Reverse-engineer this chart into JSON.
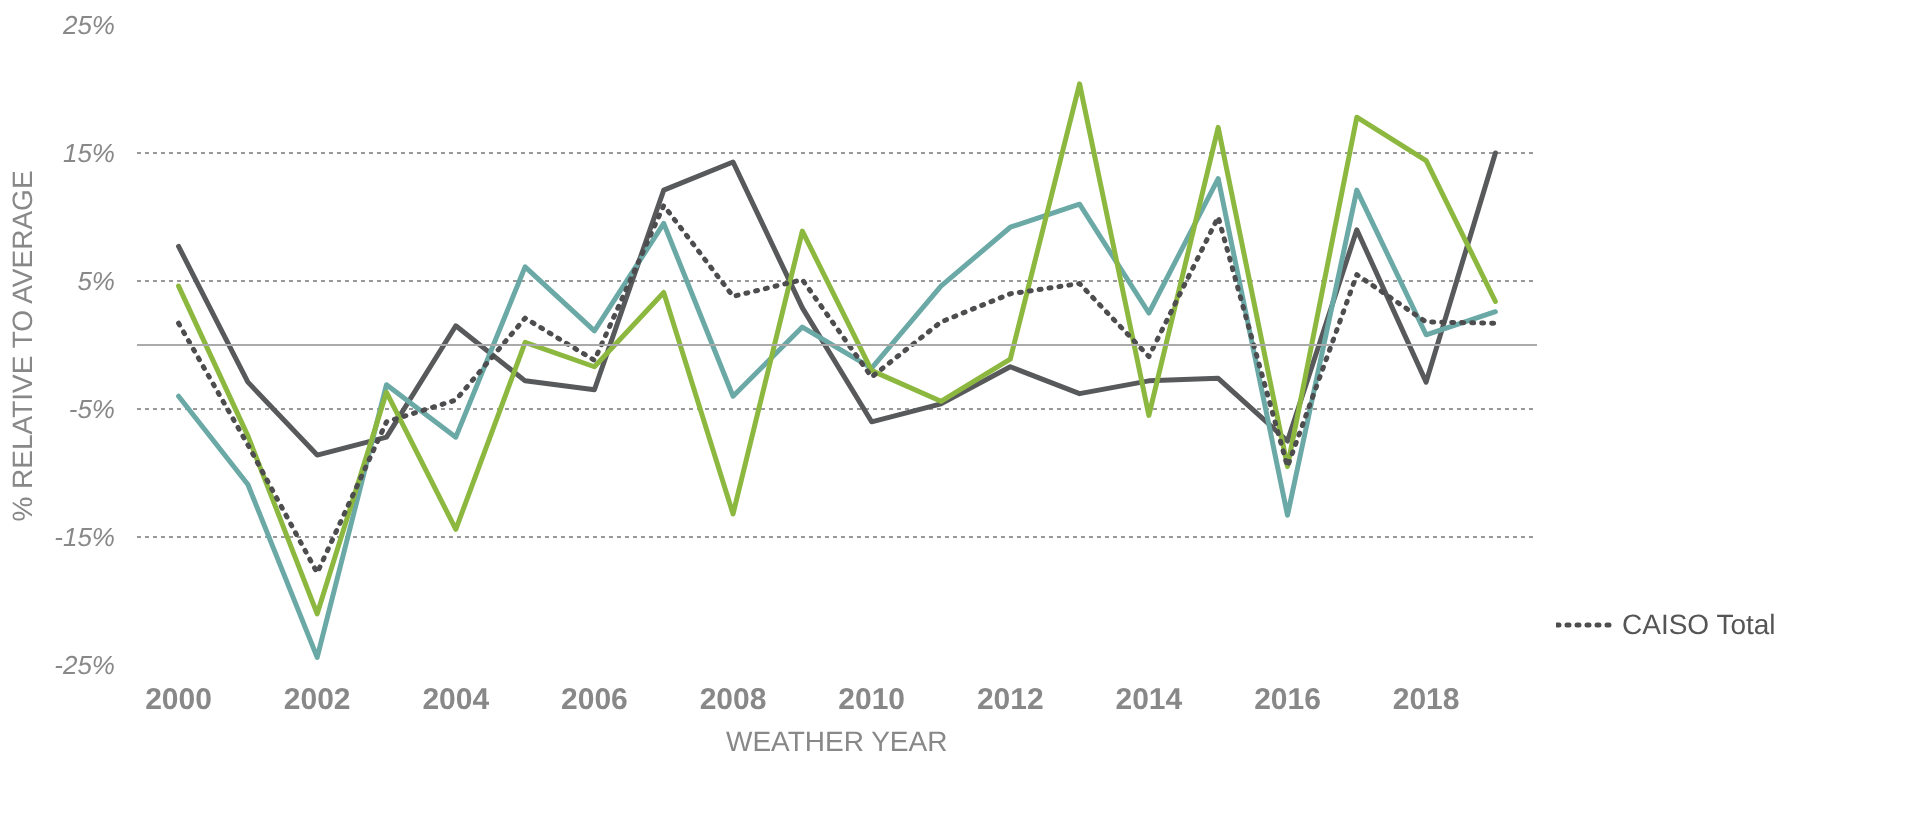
{
  "chart_data": {
    "type": "line",
    "xlabel": "WEATHER YEAR",
    "ylabel": "% RELATIVE TO AVERAGE",
    "x": [
      2000,
      2001,
      2002,
      2003,
      2004,
      2005,
      2006,
      2007,
      2008,
      2009,
      2010,
      2011,
      2012,
      2013,
      2014,
      2015,
      2016,
      2017,
      2018,
      2019
    ],
    "series": [
      {
        "color": "#58595b",
        "values": [
          7.7,
          -2.9,
          -8.6,
          -7.2,
          1.5,
          -2.8,
          -3.5,
          12.1,
          14.3,
          2.9,
          -6.0,
          -4.6,
          -1.7,
          -3.8,
          -2.8,
          -2.6,
          -7.5,
          9.0,
          -2.9,
          15.0
        ]
      },
      {
        "color": "#6aa9a6",
        "values": [
          -4.0,
          -10.9,
          -24.4,
          -3.1,
          -7.2,
          6.1,
          1.1,
          9.5,
          -4.0,
          1.4,
          -1.8,
          4.6,
          9.2,
          11.0,
          2.5,
          13.0,
          -13.3,
          12.1,
          0.8,
          2.6
        ]
      },
      {
        "color": "#8db83f",
        "values": [
          4.6,
          -7.1,
          -21.0,
          -3.7,
          -14.4,
          0.2,
          -1.7,
          4.1,
          -13.2,
          8.9,
          -2.0,
          -4.4,
          -1.1,
          20.4,
          -5.5,
          17.0,
          -9.5,
          17.8,
          14.4,
          3.4
        ]
      },
      {
        "name": "CAISO Total",
        "color": "#4d4d4f",
        "line_style": "dotted",
        "values": [
          1.7,
          -7.8,
          -17.8,
          -6.0,
          -4.3,
          2.1,
          -1.2,
          10.9,
          3.8,
          5.1,
          -2.5,
          1.8,
          4.0,
          4.8,
          -0.9,
          10.0,
          -9.5,
          5.5,
          1.8,
          1.7
        ]
      }
    ],
    "xlim": [
      1999.4,
      2019.6
    ],
    "xticks": [
      2000,
      2002,
      2004,
      2006,
      2008,
      2010,
      2012,
      2014,
      2016,
      2018
    ],
    "ylim": [
      -25,
      25
    ],
    "yticks": [
      {
        "value": -25,
        "label": "-25%"
      },
      {
        "value": -15,
        "label": "-15%"
      },
      {
        "value": -5,
        "label": "-5%"
      },
      {
        "value": 5,
        "label": "5%"
      },
      {
        "value": 15,
        "label": "15%"
      },
      {
        "value": 25,
        "label": "25%"
      }
    ],
    "ref_lines": [
      {
        "axis": "y",
        "value": 0,
        "color": "#aaaaaa"
      }
    ],
    "grid": "y",
    "legend": "right",
    "line_style": "solid",
    "marker": "none"
  }
}
